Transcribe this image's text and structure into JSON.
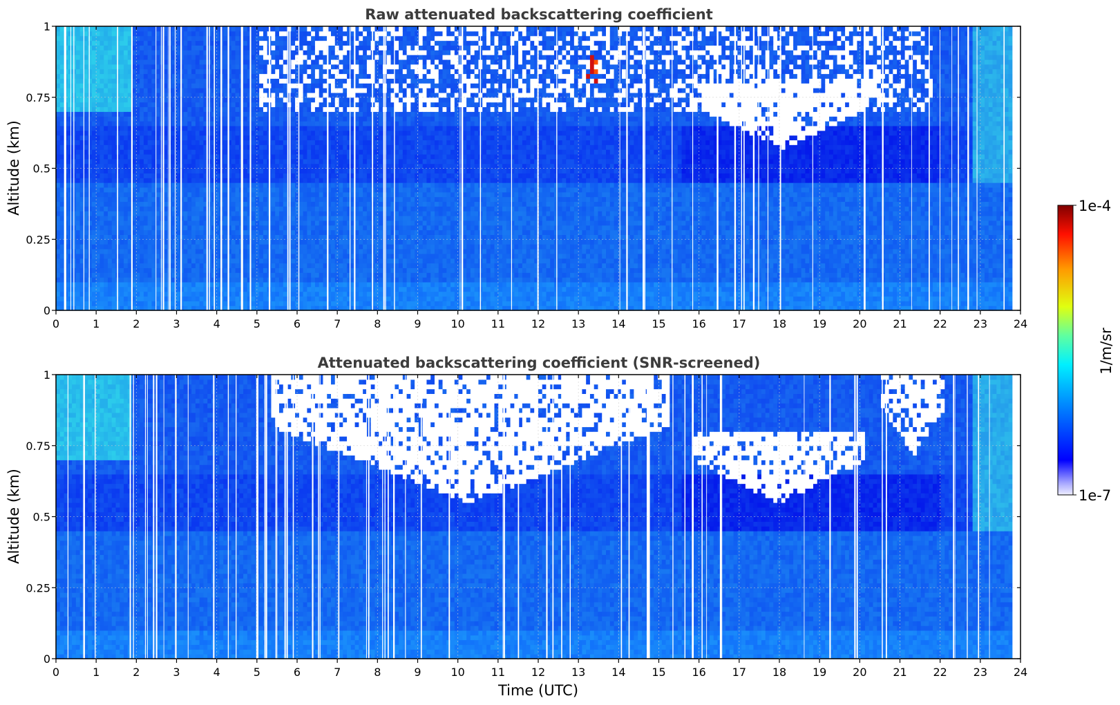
{
  "chart_data": [
    {
      "type": "heatmap",
      "title": "Raw attenuated backscattering coefficient",
      "xlabel": "",
      "ylabel": "Altitude (km)",
      "xlim": [
        0,
        24
      ],
      "ylim": [
        0,
        1
      ],
      "xticks": [
        "0",
        "1",
        "2",
        "3",
        "4",
        "5",
        "6",
        "7",
        "8",
        "9",
        "10",
        "11",
        "12",
        "13",
        "14",
        "15",
        "16",
        "17",
        "18",
        "19",
        "20",
        "21",
        "22",
        "23",
        "24"
      ],
      "yticks": [
        "0",
        "0.25",
        "0.5",
        "0.75",
        "1"
      ],
      "grid": true,
      "features": [
        {
          "kind": "sparse-noise-above",
          "x_range": [
            5,
            21.8
          ],
          "altitude_km": 0.7
        },
        {
          "kind": "white-patch",
          "x_range": [
            15.8,
            20.3
          ],
          "altitude_range_km": [
            0.57,
            0.82
          ]
        },
        {
          "kind": "high-value-spot",
          "x_range": [
            13,
            13.4
          ],
          "altitude_range_km": [
            0.78,
            0.92
          ]
        }
      ]
    },
    {
      "type": "heatmap",
      "title": "Attenuated backscattering coefficient (SNR-screened)",
      "xlabel": "Time (UTC)",
      "ylabel": "Altitude (km)",
      "xlim": [
        0,
        24
      ],
      "ylim": [
        0,
        1
      ],
      "xticks": [
        "0",
        "1",
        "2",
        "3",
        "4",
        "5",
        "6",
        "7",
        "8",
        "9",
        "10",
        "11",
        "12",
        "13",
        "14",
        "15",
        "16",
        "17",
        "18",
        "19",
        "20",
        "21",
        "22",
        "23",
        "24"
      ],
      "yticks": [
        "0",
        "0.25",
        "0.5",
        "0.75",
        "1"
      ],
      "grid": true,
      "features": [
        {
          "kind": "screened-region",
          "x_range": [
            5.3,
            15.2
          ],
          "altitude_range_km": [
            0.55,
            1.0
          ]
        },
        {
          "kind": "white-patch",
          "x_range": [
            15.8,
            20.1
          ],
          "altitude_range_km": [
            0.55,
            0.8
          ]
        },
        {
          "kind": "screened-region",
          "x_range": [
            20.5,
            22.1
          ],
          "altitude_range_km": [
            0.72,
            1.0
          ]
        }
      ]
    }
  ],
  "colorbar": {
    "label": "1/m/sr",
    "min_label": "1e-7",
    "max_label": "1e-4",
    "colormap": "jet",
    "scale": "log"
  }
}
